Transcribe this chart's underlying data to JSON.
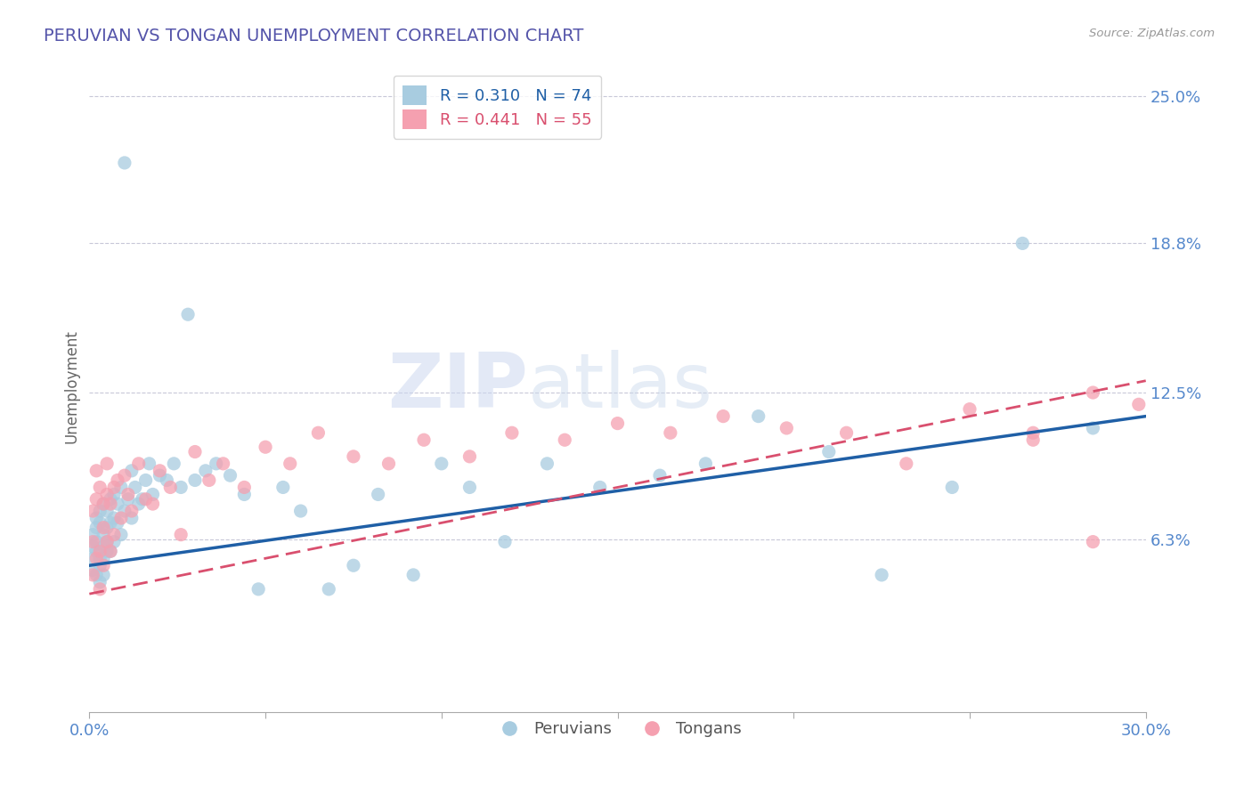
{
  "title": "PERUVIAN VS TONGAN UNEMPLOYMENT CORRELATION CHART",
  "source": "Source: ZipAtlas.com",
  "ylabel": "Unemployment",
  "xlim": [
    0.0,
    0.3
  ],
  "ylim": [
    -0.01,
    0.265
  ],
  "ytick_values": [
    0.063,
    0.125,
    0.188,
    0.25
  ],
  "ytick_labels": [
    "6.3%",
    "12.5%",
    "18.8%",
    "25.0%"
  ],
  "peruvian_color": "#a8cce0",
  "tongan_color": "#f5a0b0",
  "peruvian_line_color": "#1f5fa6",
  "tongan_line_color": "#d94f6e",
  "peruvian_R": 0.31,
  "peruvian_N": 74,
  "tongan_R": 0.441,
  "tongan_N": 55,
  "watermark_zip": "ZIP",
  "watermark_atlas": "atlas",
  "background_color": "#ffffff",
  "grid_color": "#c8c8d8",
  "title_color": "#5555aa",
  "axis_label_color": "#666666",
  "tick_label_color": "#5588cc",
  "peru_line_start_y": 0.052,
  "peru_line_end_y": 0.115,
  "tonga_line_start_y": 0.04,
  "tonga_line_end_y": 0.13,
  "peruvians_x": [
    0.001,
    0.001,
    0.001,
    0.001,
    0.002,
    0.002,
    0.002,
    0.002,
    0.002,
    0.003,
    0.003,
    0.003,
    0.003,
    0.003,
    0.004,
    0.004,
    0.004,
    0.004,
    0.004,
    0.005,
    0.005,
    0.005,
    0.005,
    0.006,
    0.006,
    0.006,
    0.007,
    0.007,
    0.007,
    0.008,
    0.008,
    0.009,
    0.009,
    0.01,
    0.01,
    0.011,
    0.012,
    0.012,
    0.013,
    0.014,
    0.015,
    0.016,
    0.017,
    0.018,
    0.02,
    0.022,
    0.024,
    0.026,
    0.028,
    0.03,
    0.033,
    0.036,
    0.04,
    0.044,
    0.048,
    0.055,
    0.06,
    0.068,
    0.075,
    0.082,
    0.092,
    0.1,
    0.108,
    0.118,
    0.13,
    0.145,
    0.162,
    0.175,
    0.19,
    0.21,
    0.225,
    0.245,
    0.265,
    0.285
  ],
  "peruvians_y": [
    0.06,
    0.055,
    0.065,
    0.05,
    0.058,
    0.072,
    0.048,
    0.062,
    0.068,
    0.055,
    0.07,
    0.045,
    0.075,
    0.052,
    0.06,
    0.078,
    0.048,
    0.065,
    0.055,
    0.062,
    0.075,
    0.058,
    0.068,
    0.07,
    0.08,
    0.058,
    0.072,
    0.082,
    0.062,
    0.078,
    0.07,
    0.085,
    0.065,
    0.075,
    0.222,
    0.08,
    0.092,
    0.072,
    0.085,
    0.078,
    0.08,
    0.088,
    0.095,
    0.082,
    0.09,
    0.088,
    0.095,
    0.085,
    0.158,
    0.088,
    0.092,
    0.095,
    0.09,
    0.082,
    0.042,
    0.085,
    0.075,
    0.042,
    0.052,
    0.082,
    0.048,
    0.095,
    0.085,
    0.062,
    0.095,
    0.085,
    0.09,
    0.095,
    0.115,
    0.1,
    0.048,
    0.085,
    0.188,
    0.11
  ],
  "tongans_x": [
    0.001,
    0.001,
    0.001,
    0.002,
    0.002,
    0.002,
    0.003,
    0.003,
    0.003,
    0.004,
    0.004,
    0.004,
    0.005,
    0.005,
    0.005,
    0.006,
    0.006,
    0.007,
    0.007,
    0.008,
    0.009,
    0.01,
    0.011,
    0.012,
    0.014,
    0.016,
    0.018,
    0.02,
    0.023,
    0.026,
    0.03,
    0.034,
    0.038,
    0.044,
    0.05,
    0.057,
    0.065,
    0.075,
    0.085,
    0.095,
    0.108,
    0.12,
    0.135,
    0.15,
    0.165,
    0.18,
    0.198,
    0.215,
    0.232,
    0.25,
    0.268,
    0.285,
    0.298,
    0.285,
    0.268
  ],
  "tongans_y": [
    0.062,
    0.048,
    0.075,
    0.08,
    0.055,
    0.092,
    0.058,
    0.085,
    0.042,
    0.068,
    0.078,
    0.052,
    0.095,
    0.062,
    0.082,
    0.058,
    0.078,
    0.085,
    0.065,
    0.088,
    0.072,
    0.09,
    0.082,
    0.075,
    0.095,
    0.08,
    0.078,
    0.092,
    0.085,
    0.065,
    0.1,
    0.088,
    0.095,
    0.085,
    0.102,
    0.095,
    0.108,
    0.098,
    0.095,
    0.105,
    0.098,
    0.108,
    0.105,
    0.112,
    0.108,
    0.115,
    0.11,
    0.108,
    0.095,
    0.118,
    0.105,
    0.062,
    0.12,
    0.125,
    0.108
  ]
}
